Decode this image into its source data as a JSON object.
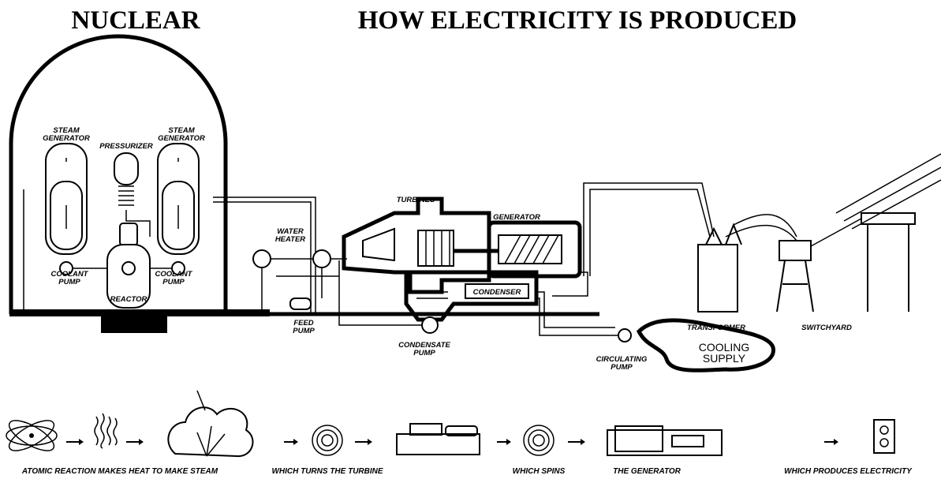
{
  "header": {
    "left_title": "NUCLEAR",
    "title": "HOW ELECTRICITY IS PRODUCED"
  },
  "labels": [
    {
      "lines": [
        "STEAM",
        "GENERATOR"
      ]
    },
    {
      "lines": [
        "PRESSURIZER"
      ]
    },
    {
      "lines": [
        "STEAM",
        "GENERATOR"
      ]
    },
    {
      "lines": [
        "COOLANT",
        "PUMP"
      ]
    },
    {
      "lines": [
        "COOLANT",
        "PUMP"
      ]
    },
    {
      "lines": [
        "REACTOR"
      ]
    },
    {
      "lines": [
        "TURBINES"
      ]
    },
    {
      "lines": [
        "GENERATOR"
      ]
    },
    {
      "lines": [
        "WATER",
        "HEATER"
      ]
    },
    {
      "lines": [
        "CONDENSER"
      ]
    },
    {
      "lines": [
        "FEED",
        "PUMP"
      ]
    },
    {
      "lines": [
        "CONDENSATE",
        "PUMP"
      ]
    },
    {
      "lines": [
        "CIRCULATING",
        "PUMP"
      ]
    },
    {
      "lines": [
        "COOLING",
        "SUPPLY"
      ]
    },
    {
      "lines": [
        "TRANSFORMER"
      ]
    },
    {
      "lines": [
        "SWITCHYARD"
      ]
    }
  ],
  "process": [
    "ATOMIC REACTION MAKES HEAT TO MAKE STEAM",
    "WHICH TURNS THE TURBINE",
    "WHICH SPINS",
    "THE GENERATOR",
    "WHICH PRODUCES ELECTRICITY"
  ]
}
